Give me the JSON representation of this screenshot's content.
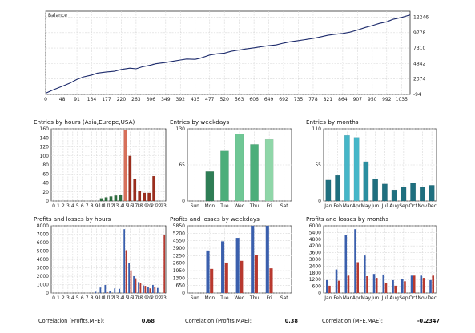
{
  "chart_data": [
    {
      "id": "balance",
      "type": "line",
      "legend": "Balance",
      "x_ticks": [
        "0",
        "48",
        "91",
        "134",
        "177",
        "220",
        "263",
        "306",
        "349",
        "392",
        "435",
        "477",
        "520",
        "563",
        "606",
        "649",
        "692",
        "735",
        "778",
        "821",
        "864",
        "907",
        "950",
        "992",
        "1035"
      ],
      "y_ticks": [
        "12246",
        "9778",
        "7310",
        "4842",
        "2374",
        "-94"
      ],
      "xlim": [
        0,
        1060
      ],
      "ylim": [
        -94,
        13200
      ],
      "x": [
        0,
        20,
        48,
        70,
        91,
        110,
        134,
        150,
        177,
        200,
        220,
        245,
        263,
        280,
        306,
        320,
        349,
        370,
        392,
        410,
        435,
        450,
        477,
        500,
        520,
        540,
        563,
        580,
        606,
        630,
        649,
        670,
        692,
        710,
        735,
        760,
        778,
        800,
        821,
        840,
        864,
        885,
        907,
        930,
        950,
        970,
        992,
        1010,
        1035,
        1060
      ],
      "y": [
        100,
        600,
        1200,
        1700,
        2300,
        2700,
        3000,
        3300,
        3500,
        3600,
        3900,
        4100,
        4000,
        4300,
        4600,
        4800,
        5000,
        5200,
        5400,
        5550,
        5500,
        5700,
        6200,
        6400,
        6500,
        6800,
        7000,
        7150,
        7350,
        7550,
        7700,
        7800,
        8100,
        8300,
        8500,
        8700,
        8850,
        9100,
        9350,
        9500,
        9650,
        9850,
        10200,
        10600,
        10900,
        11250,
        11500,
        11900,
        12200,
        12600
      ]
    },
    {
      "id": "entries-hours",
      "type": "bar",
      "title": "Entries by hours (Asia,Europe,USA)",
      "categories": [
        "0",
        "1",
        "2",
        "3",
        "4",
        "5",
        "6",
        "7",
        "8",
        "9",
        "10",
        "11",
        "12",
        "13",
        "14",
        "15",
        "16",
        "17",
        "18",
        "19",
        "20",
        "21",
        "22",
        "23"
      ],
      "values": [
        0,
        0,
        0,
        0,
        0,
        0,
        0,
        0,
        0,
        0,
        6,
        8,
        10,
        12,
        14,
        158,
        100,
        48,
        22,
        18,
        18,
        55,
        0,
        0
      ],
      "colors": [
        "#2e6e3f",
        "#2e6e3f",
        "#2e6e3f",
        "#2e6e3f",
        "#2e6e3f",
        "#2e6e3f",
        "#2e6e3f",
        "#2e6e3f",
        "#2e6e3f",
        "#2e6e3f",
        "#2e6e3f",
        "#2e6e3f",
        "#2e6e3f",
        "#2e6e3f",
        "#2e6e3f",
        "#d8705a",
        "#9c2e1e",
        "#9c2e1e",
        "#9c2e1e",
        "#9c2e1e",
        "#9c2e1e",
        "#9c2e1e",
        "#9c2e1e",
        "#9c2e1e"
      ],
      "y_ticks": [
        "0",
        "20",
        "40",
        "60",
        "80",
        "100",
        "120",
        "140",
        "160"
      ],
      "ylim": [
        0,
        160
      ]
    },
    {
      "id": "entries-weekdays",
      "type": "bar",
      "title": "Entries by weekdays",
      "categories": [
        "Sun",
        "Mon",
        "Tue",
        "Wed",
        "Thu",
        "Fri",
        "Sat"
      ],
      "values": [
        0,
        53,
        90,
        121,
        102,
        111,
        0
      ],
      "colors": [
        "#2e7d55",
        "#2e7d55",
        "#4cae7a",
        "#6fc795",
        "#4cae7a",
        "#8fd6a8",
        "#2e7d55"
      ],
      "y_ticks": [
        "0",
        "65",
        "130"
      ],
      "ylim": [
        0,
        130
      ]
    },
    {
      "id": "entries-months",
      "type": "bar",
      "title": "Entries by months",
      "categories": [
        "Jan",
        "Feb",
        "Mar",
        "Apr",
        "May",
        "Jun",
        "Jul",
        "Aug",
        "Sep",
        "Oct",
        "Nov",
        "Dec"
      ],
      "values": [
        32,
        39,
        100,
        97,
        60,
        34,
        26,
        17,
        21,
        27,
        21,
        24
      ],
      "colors": [
        "#1f6f7f",
        "#1f6f7f",
        "#46b6c8",
        "#46b6c8",
        "#2a8ea0",
        "#1f6f7f",
        "#1f6f7f",
        "#1f6f7f",
        "#1f6f7f",
        "#1f6f7f",
        "#1f6f7f",
        "#1f6f7f"
      ],
      "y_ticks": [
        "0",
        "55",
        "110"
      ],
      "ylim": [
        0,
        110
      ]
    },
    {
      "id": "pl-hours",
      "type": "bar",
      "title": "Profits and losses by hours",
      "categories": [
        "0",
        "1",
        "2",
        "3",
        "4",
        "5",
        "6",
        "7",
        "8",
        "9",
        "10",
        "11",
        "12",
        "13",
        "14",
        "15",
        "16",
        "17",
        "18",
        "19",
        "20",
        "21",
        "22",
        "23"
      ],
      "series": [
        {
          "values": [
            0,
            0,
            0,
            0,
            0,
            0,
            0,
            0,
            0,
            150,
            650,
            950,
            250,
            550,
            500,
            7600,
            3600,
            2000,
            1300,
            900,
            700,
            950,
            600,
            0
          ]
        },
        {
          "values": [
            0,
            0,
            0,
            0,
            0,
            0,
            0,
            0,
            0,
            0,
            0,
            100,
            0,
            0,
            0,
            5100,
            2700,
            1750,
            1200,
            850,
            550,
            700,
            0,
            6900
          ]
        }
      ],
      "series_colors": [
        "#3a5fad",
        "#b8392f"
      ],
      "y_ticks": [
        "0",
        "1000",
        "2000",
        "3000",
        "4000",
        "5000",
        "6000",
        "7000",
        "8000"
      ],
      "ylim": [
        0,
        8000
      ]
    },
    {
      "id": "pl-weekdays",
      "type": "bar",
      "title": "Profits and losses by weekdays",
      "categories": [
        "Sun",
        "Mon",
        "Tue",
        "Wed",
        "Thu",
        "Fri",
        "Sat"
      ],
      "series": [
        {
          "values": [
            0,
            3700,
            4500,
            4800,
            5850,
            5850,
            0
          ]
        },
        {
          "values": [
            0,
            2100,
            2650,
            2800,
            3300,
            2150,
            0
          ]
        }
      ],
      "series_colors": [
        "#3a5fad",
        "#b8392f"
      ],
      "y_ticks": [
        "0",
        "650",
        "1300",
        "1950",
        "2600",
        "3250",
        "3900",
        "4550",
        "5200",
        "5850"
      ],
      "ylim": [
        0,
        5850
      ]
    },
    {
      "id": "pl-months",
      "type": "bar",
      "title": "Profits and losses by months",
      "categories": [
        "Jan",
        "Feb",
        "Mar",
        "Apr",
        "May",
        "Jun",
        "Jul",
        "Aug",
        "Sep",
        "Oct",
        "Nov",
        "Dec"
      ],
      "series": [
        {
          "values": [
            1150,
            2100,
            5200,
            5700,
            3350,
            1700,
            1650,
            1150,
            1250,
            1550,
            1550,
            1150
          ]
        },
        {
          "values": [
            650,
            1100,
            1550,
            2750,
            1500,
            1350,
            900,
            650,
            1050,
            1550,
            1350,
            1550
          ]
        }
      ],
      "series_colors": [
        "#3a5fad",
        "#b8392f"
      ],
      "y_ticks": [
        "0",
        "600",
        "1200",
        "1800",
        "2400",
        "3000",
        "3600",
        "4200",
        "4800",
        "5400",
        "6000"
      ],
      "ylim": [
        0,
        6000
      ]
    }
  ],
  "correlations": [
    {
      "label": "Correlation (Profits,MFE):",
      "value": "0.68"
    },
    {
      "label": "Correlation (Profits,MAE):",
      "value": "0.38"
    },
    {
      "label": "Correlation (MFE,MAE):",
      "value": "-0.2347"
    }
  ],
  "line_color": "#1c2a6b"
}
